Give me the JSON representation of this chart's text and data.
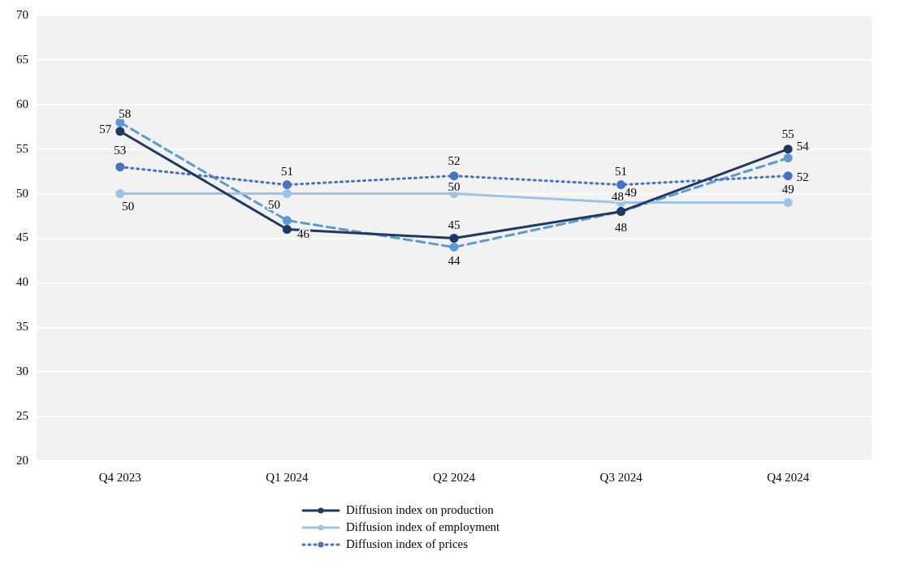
{
  "chart_data": {
    "type": "line",
    "categories": [
      "Q4 2023",
      "Q1 2024",
      "Q2 2024",
      "Q3 2024",
      "Q4 2024"
    ],
    "series": [
      {
        "name": "Diffusion index on production",
        "color": "#203864",
        "values": [
          57,
          46,
          45,
          48,
          55
        ],
        "value_labels": [
          "57",
          "46",
          "45",
          "48",
          "55"
        ],
        "line_style": "solid"
      },
      {
        "name": "Diffusion index of employment",
        "color": "#9dc3e6",
        "values": [
          50,
          50,
          50,
          49,
          49
        ],
        "value_labels": [
          "50",
          "50",
          "50",
          "49",
          "49"
        ],
        "line_style": "solid"
      },
      {
        "name": "Diffusion index of prices",
        "color": "#4472c4",
        "values": [
          53,
          51,
          52,
          51,
          52
        ],
        "value_labels": [
          "53",
          "51",
          "52",
          "51",
          "52"
        ],
        "line_style": "dotted"
      },
      {
        "color": "#5b9bd5",
        "values": [
          58,
          47,
          44,
          48,
          54
        ],
        "value_labels": [
          "58",
          null,
          "44",
          "48",
          "54"
        ],
        "line_style": "dashed"
      }
    ],
    "ylim": [
      20,
      70
    ],
    "yticks": [
      20,
      25,
      30,
      35,
      40,
      45,
      50,
      55,
      60,
      65,
      70
    ],
    "grid": "y",
    "legend": "bottom",
    "marker": "circle"
  }
}
